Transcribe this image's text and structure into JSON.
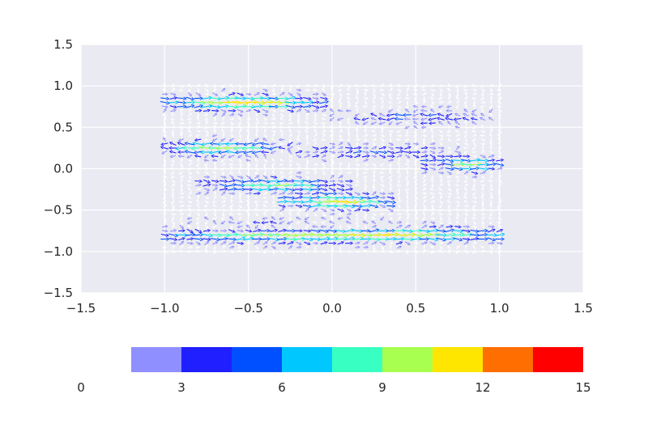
{
  "chart_data": {
    "type": "quiver",
    "title": "",
    "xlabel": "",
    "ylabel": "",
    "xlim": [
      -1.5,
      1.5
    ],
    "ylim": [
      -1.5,
      1.5
    ],
    "xticks": [
      -1.5,
      -1.0,
      -0.5,
      0.0,
      0.5,
      1.0,
      1.5
    ],
    "yticks": [
      -1.5,
      -1.0,
      -0.5,
      0.0,
      0.5,
      1.0,
      1.5
    ],
    "xtick_labels": [
      "−1.5",
      "−1.0",
      "−0.5",
      "0.0",
      "0.5",
      "1.0",
      "1.5"
    ],
    "ytick_labels": [
      "−1.5",
      "−1.0",
      "−0.5",
      "0.0",
      "0.5",
      "1.0",
      "1.5"
    ],
    "grid": true,
    "background": "#eaeaf2",
    "field_domain": {
      "x": [
        -1.0,
        1.0
      ],
      "y": [
        -1.0,
        1.0
      ]
    },
    "streams": [
      {
        "y": 0.8,
        "x0": -0.95,
        "x1": -0.1,
        "dir": 1,
        "peak": 11
      },
      {
        "y": 0.62,
        "x0": 0.1,
        "x1": 0.9,
        "dir": -1,
        "peak": 4
      },
      {
        "y": 0.25,
        "x0": -1.0,
        "x1": -0.3,
        "dir": -1,
        "peak": 9
      },
      {
        "y": 0.2,
        "x0": -0.3,
        "x1": 0.7,
        "dir": 1,
        "peak": 4
      },
      {
        "y": 0.05,
        "x0": 0.65,
        "x1": 1.0,
        "dir": 1,
        "peak": 9
      },
      {
        "y": -0.2,
        "x0": -0.7,
        "x1": 0.05,
        "dir": 1,
        "peak": 8
      },
      {
        "y": -0.4,
        "x0": -0.2,
        "x1": 0.3,
        "dir": 1,
        "peak": 11
      },
      {
        "y": -0.7,
        "x0": -0.75,
        "x1": 0.3,
        "dir": -1,
        "peak": 4
      },
      {
        "y": -0.8,
        "x0": -1.0,
        "x1": 1.05,
        "dir": 1,
        "peak": 11
      }
    ],
    "colorbar": {
      "orientation": "horizontal",
      "min": 0,
      "max": 15,
      "ticks": [
        0,
        3,
        6,
        9,
        12,
        15
      ],
      "tick_labels": [
        "0",
        "3",
        "6",
        "9",
        "12",
        "15"
      ],
      "bins": [
        {
          "from": 0,
          "to": 1.5,
          "color": "#ffffff"
        },
        {
          "from": 1.5,
          "to": 3,
          "color": "#8f8fff"
        },
        {
          "from": 3,
          "to": 4.5,
          "color": "#1f1fff"
        },
        {
          "from": 4.5,
          "to": 6,
          "color": "#0050ff"
        },
        {
          "from": 6,
          "to": 7.5,
          "color": "#00c8ff"
        },
        {
          "from": 7.5,
          "to": 9,
          "color": "#38ffc2"
        },
        {
          "from": 9,
          "to": 10.5,
          "color": "#a8ff50"
        },
        {
          "from": 10.5,
          "to": 12,
          "color": "#ffe600"
        },
        {
          "from": 12,
          "to": 13.5,
          "color": "#ff6e00"
        },
        {
          "from": 13.5,
          "to": 15,
          "color": "#ff0000"
        }
      ]
    }
  }
}
